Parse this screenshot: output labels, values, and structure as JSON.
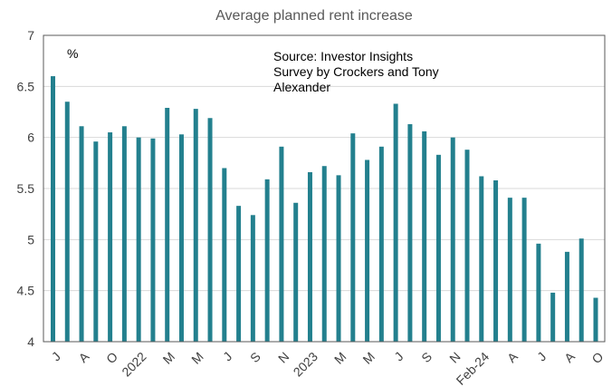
{
  "chart_data": {
    "type": "bar",
    "title": "Average planned rent increase",
    "unit_label": "%",
    "source_lines": [
      "Source: Investor Insights",
      "Survey by Crockers and Tony",
      "Alexander"
    ],
    "ylim": [
      4,
      7
    ],
    "yticks": [
      "4",
      "4.5",
      "5",
      "5.5",
      "6",
      "6.5",
      "7"
    ],
    "grid": true,
    "bar_color": "#23808E",
    "tick_labels": [
      {
        "text": "J",
        "index": 0
      },
      {
        "text": "A",
        "index": 2
      },
      {
        "text": "O",
        "index": 4
      },
      {
        "text": "2022",
        "index": 6
      },
      {
        "text": "M",
        "index": 8
      },
      {
        "text": "M",
        "index": 10
      },
      {
        "text": "J",
        "index": 12
      },
      {
        "text": "S",
        "index": 14
      },
      {
        "text": "N",
        "index": 16
      },
      {
        "text": "2023",
        "index": 18
      },
      {
        "text": "M",
        "index": 20
      },
      {
        "text": "M",
        "index": 22
      },
      {
        "text": "J",
        "index": 24
      },
      {
        "text": "S",
        "index": 26
      },
      {
        "text": "N",
        "index": 28
      },
      {
        "text": "Feb-24",
        "index": 30
      },
      {
        "text": "A",
        "index": 32
      },
      {
        "text": "J",
        "index": 34
      },
      {
        "text": "A",
        "index": 36
      },
      {
        "text": "O",
        "index": 38
      }
    ],
    "values": [
      6.6,
      6.35,
      6.11,
      5.96,
      6.05,
      6.11,
      6.0,
      5.99,
      6.29,
      6.03,
      6.28,
      6.19,
      5.7,
      5.33,
      5.24,
      5.59,
      5.91,
      5.36,
      5.66,
      5.72,
      5.63,
      6.04,
      5.78,
      5.91,
      6.33,
      6.13,
      6.06,
      5.83,
      6.0,
      5.88,
      5.62,
      5.58,
      5.41,
      5.41,
      4.96,
      4.48,
      4.88,
      5.01,
      4.43
    ]
  }
}
